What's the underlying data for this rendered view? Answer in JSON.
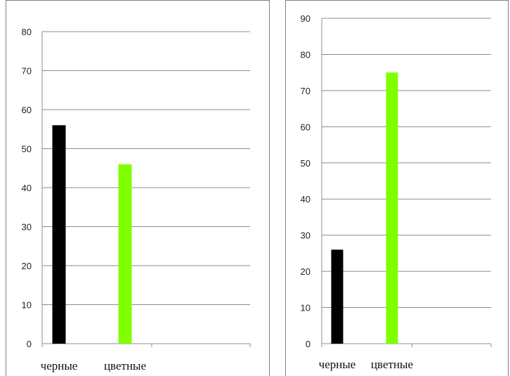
{
  "chart_data": [
    {
      "type": "bar",
      "categories": [
        "черные",
        "цветные"
      ],
      "values": [
        56,
        46
      ],
      "colors": [
        "#000000",
        "#80ff00"
      ],
      "ylim": [
        0,
        80
      ],
      "yticks": [
        0,
        10,
        20,
        30,
        40,
        50,
        60,
        70,
        80
      ],
      "grid": true,
      "legend": "none"
    },
    {
      "type": "bar",
      "categories": [
        "черные",
        "цветные"
      ],
      "values": [
        26,
        75
      ],
      "colors": [
        "#000000",
        "#80ff00"
      ],
      "ylim": [
        0,
        90
      ],
      "yticks": [
        0,
        10,
        20,
        30,
        40,
        50,
        60,
        70,
        80,
        90
      ],
      "grid": true,
      "legend": "none"
    }
  ]
}
